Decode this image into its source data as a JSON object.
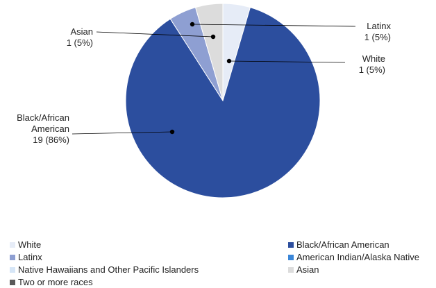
{
  "chart_data": {
    "type": "pie",
    "slices": [
      {
        "name": "White",
        "value": 1,
        "label_line1": "White",
        "label_line2": "1 (5%)",
        "color": "#e6ecf7"
      },
      {
        "name": "Black/African American",
        "value": 19,
        "label_line1": "Black/African",
        "label_line2": "American",
        "label_line3": "19 (86%)",
        "color": "#2c4e9e"
      },
      {
        "name": "Latinx",
        "value": 1,
        "label_line1": "Latinx",
        "label_line2": "1 (5%)",
        "color": "#8e9fd2"
      },
      {
        "name": "Asian",
        "value": 1,
        "label_line1": "Asian",
        "label_line2": "1 (5%)",
        "color": "#dcdcdc"
      }
    ],
    "legend": [
      {
        "name": "White",
        "color": "#e6ecf7"
      },
      {
        "name": "Black/African American",
        "color": "#2c4e9e"
      },
      {
        "name": "Latinx",
        "color": "#8e9fd2"
      },
      {
        "name": "American Indian/Alaska Native",
        "color": "#3a86d8"
      },
      {
        "name": "Native Hawaiians and Other Pacific Islanders",
        "color": "#d6e6f7"
      },
      {
        "name": "Asian",
        "color": "#dcdcdc"
      },
      {
        "name": "Two or more races",
        "color": "#595959"
      }
    ],
    "legend_position": "bottom"
  }
}
